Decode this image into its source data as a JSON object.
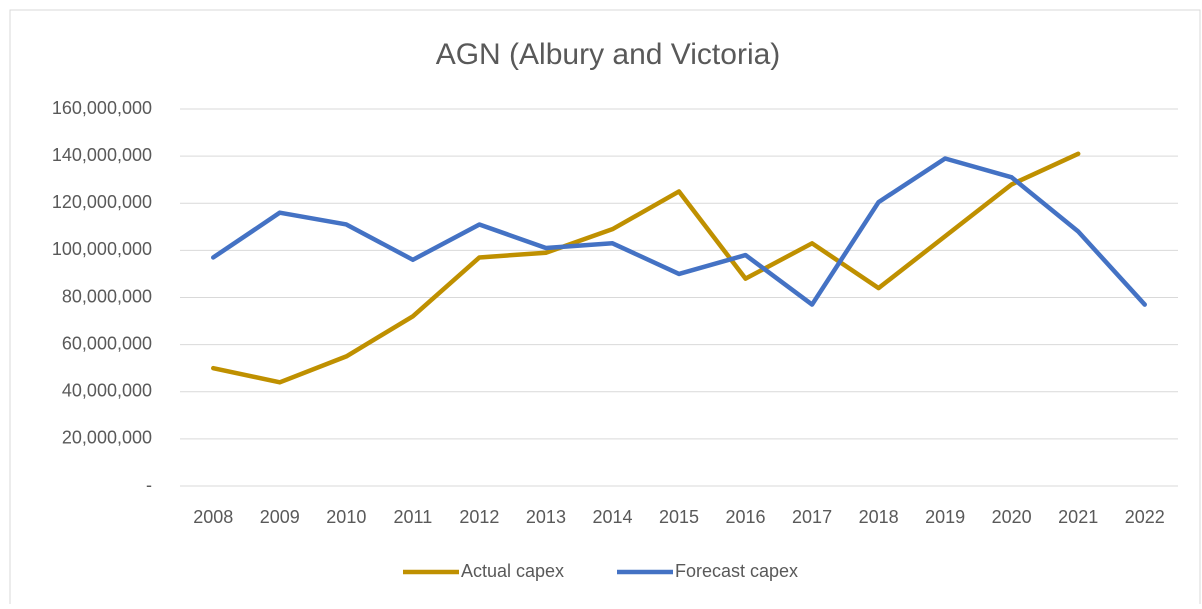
{
  "chart_data": {
    "type": "line",
    "title": "AGN (Albury and Victoria)",
    "categories": [
      "2008",
      "2009",
      "2010",
      "2011",
      "2012",
      "2013",
      "2014",
      "2015",
      "2016",
      "2017",
      "2018",
      "2019",
      "2020",
      "2021",
      "2022"
    ],
    "series": [
      {
        "name": "Actual capex",
        "color": "#bf9000",
        "values": [
          50000000,
          44000000,
          55000000,
          72000000,
          97000000,
          99000000,
          109000000,
          125000000,
          88000000,
          103000000,
          84000000,
          106000000,
          128000000,
          141000000,
          null
        ]
      },
      {
        "name": "Forecast capex",
        "color": "#4472c4",
        "values": [
          97000000,
          116000000,
          111000000,
          96000000,
          111000000,
          101000000,
          103000000,
          90000000,
          98000000,
          77000000,
          120500000,
          139000000,
          131000000,
          108000000,
          77000000
        ]
      }
    ],
    "ylim": [
      0,
      160000000
    ],
    "yticks": [
      {
        "value": 0,
        "label": "-"
      },
      {
        "value": 20000000,
        "label": "20,000,000"
      },
      {
        "value": 40000000,
        "label": "40,000,000"
      },
      {
        "value": 60000000,
        "label": "60,000,000"
      },
      {
        "value": 80000000,
        "label": "80,000,000"
      },
      {
        "value": 100000000,
        "label": "100,000,000"
      },
      {
        "value": 120000000,
        "label": "120,000,000"
      },
      {
        "value": 140000000,
        "label": "140,000,000"
      },
      {
        "value": 160000000,
        "label": "160,000,000"
      }
    ],
    "grid": true,
    "legend": "bottom"
  }
}
